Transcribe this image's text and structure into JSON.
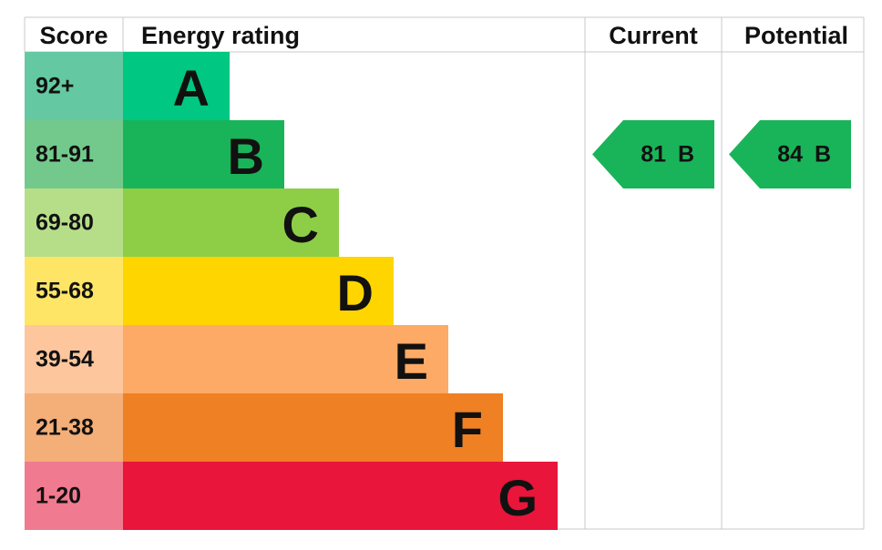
{
  "header": {
    "score": "Score",
    "rating": "Energy rating",
    "current": "Current",
    "potential": "Potential"
  },
  "bands": [
    {
      "score": "92+",
      "letter": "A",
      "color": "#00c781",
      "light": "#64c9a2"
    },
    {
      "score": "81-91",
      "letter": "B",
      "color": "#19b459",
      "light": "#72c98b"
    },
    {
      "score": "69-80",
      "letter": "C",
      "color": "#8dce46",
      "light": "#b6de88"
    },
    {
      "score": "55-68",
      "letter": "D",
      "color": "#ffd500",
      "light": "#ffe566"
    },
    {
      "score": "39-54",
      "letter": "E",
      "color": "#fcaa65",
      "light": "#fdc69c"
    },
    {
      "score": "21-38",
      "letter": "F",
      "color": "#ef8023",
      "light": "#f4ae77"
    },
    {
      "score": "1-20",
      "letter": "G",
      "color": "#e9153b",
      "light": "#f07a8f"
    }
  ],
  "current": {
    "score": 81,
    "letter": "B"
  },
  "potential": {
    "score": 84,
    "letter": "B"
  }
}
